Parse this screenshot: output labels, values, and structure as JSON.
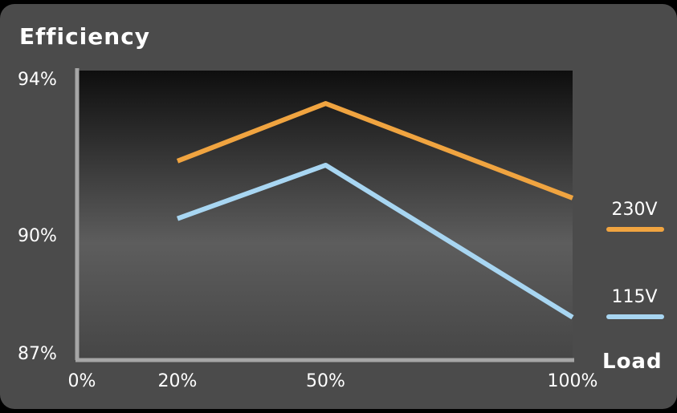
{
  "title": "Efficiency",
  "colors": {
    "series_230": "#f0a440",
    "series_115": "#a8d6f2",
    "axis": "#a6a6a6",
    "text": "#ffffff",
    "panel": "#4b4b4b"
  },
  "chart_data": {
    "type": "line",
    "title": "Efficiency",
    "xlabel": "Load",
    "ylabel": "",
    "x_ticks": [
      "0%",
      "20%",
      "50%",
      "100%"
    ],
    "y_ticks": [
      "94%",
      "90%",
      "87%"
    ],
    "x_tick_values": [
      0,
      20,
      50,
      100
    ],
    "y_tick_values": [
      94,
      90,
      87
    ],
    "xlim": [
      0,
      100
    ],
    "ylim": [
      87,
      94
    ],
    "grid": false,
    "legend_position": "right",
    "series": [
      {
        "name": "230V",
        "color": "#f0a440",
        "x": [
          20,
          50,
          100
        ],
        "y": [
          91.8,
          93.2,
          90.9
        ]
      },
      {
        "name": "115V",
        "color": "#a8d6f2",
        "x": [
          20,
          50,
          100
        ],
        "y": [
          90.4,
          91.7,
          88.0
        ]
      }
    ]
  }
}
